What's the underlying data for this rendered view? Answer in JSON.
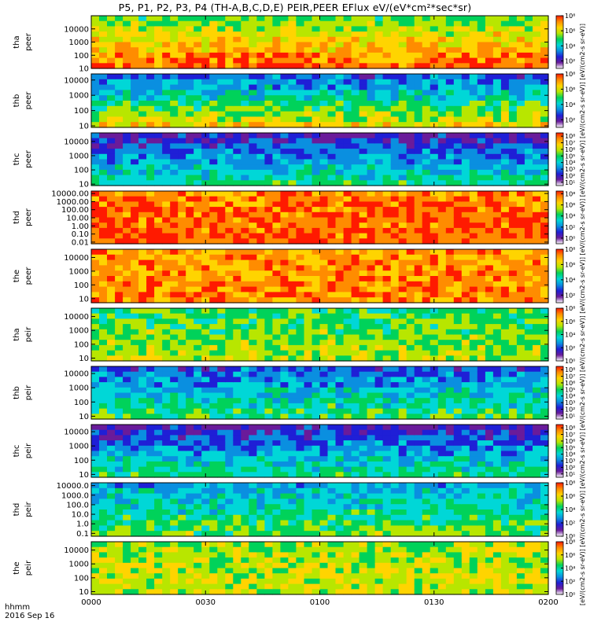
{
  "title": "P5, P1, P2, P3, P4 (TH-A,B,C,D,E) PEIR,PEER EFlux eV/(eV*cm²*sec*sr)",
  "colorbar": {
    "label": "[eV/(cm2-s sr-eV)]",
    "label_full": "[eV/(cm2-s sr-eV)] [eV/(cm2-s sr-eV)] [eV/(cm2-s sr-eV)] [eV/(cm2-s sr-eV)] [eV/(cm2-s sr-eV)] [eV/(cm2-s sr-eV)] [eV/(cm2-s sr-eV)] [eV/(cm2-s sr-eV)] [eV/(cm2-s sr-eV)] [eV/(cm2-s sr-eV)]",
    "colors": [
      "#ffffff",
      "#6a1b9a",
      "#1f1fd6",
      "#0a8fe0",
      "#00d7d7",
      "#00d25a",
      "#b8e600",
      "#ffd400",
      "#ff8c00",
      "#ff1a00"
    ]
  },
  "footer": {
    "time_label": "hhmm",
    "date_label": "2016 Sep 16"
  },
  "chart_data": [
    {
      "type": "heatmap",
      "probe": "tha",
      "species": "peer",
      "ylabel_line1": "tha",
      "ylabel_line2": "peer",
      "yticks": [
        "10000",
        "1000",
        "100",
        "10"
      ],
      "ytick_exp": [
        4,
        3,
        2,
        1
      ],
      "ylim": [
        1,
        5
      ],
      "ylog": true,
      "cbar_ticks": [
        "10⁸",
        "10⁶",
        "10⁴",
        "10²"
      ],
      "cbar_exp": [
        8,
        6,
        4,
        2
      ],
      "cbar_range": [
        1,
        8
      ],
      "ymin_data": 5,
      "dense": 0.9,
      "top_frac": 0.55
    },
    {
      "type": "heatmap",
      "probe": "thb",
      "species": "peer",
      "ylabel_line1": "thb",
      "ylabel_line2": "peer",
      "yticks": [
        "10000",
        "1000",
        "100",
        "10"
      ],
      "ytick_exp": [
        4,
        3,
        2,
        1
      ],
      "ylim": [
        0.9,
        4.4
      ],
      "ylog": true,
      "cbar_ticks": [
        "10⁸",
        "10⁶",
        "10⁴",
        "10²"
      ],
      "cbar_exp": [
        8,
        6,
        4,
        2
      ],
      "cbar_range": [
        1,
        8
      ],
      "ymin_data": 12,
      "dense": 0.7,
      "top_frac": 0.2
    },
    {
      "type": "heatmap",
      "probe": "thc",
      "species": "peer",
      "ylabel_line1": "thc",
      "ylabel_line2": "peer",
      "yticks": [
        "10000",
        "1000",
        "100",
        "10"
      ],
      "ytick_exp": [
        4,
        3,
        2,
        1
      ],
      "ylim": [
        0.9,
        4.6
      ],
      "ylog": true,
      "cbar_ticks": [
        "10⁸",
        "10⁷",
        "10⁶",
        "10⁵",
        "10⁴",
        "10³",
        "10²",
        "10¹"
      ],
      "cbar_exp": [
        8,
        7,
        6,
        5,
        4,
        3,
        2,
        1
      ],
      "cbar_range": [
        0.5,
        8.5
      ],
      "ymin_data": 8,
      "dense": 0.45,
      "top_frac": 0.1
    },
    {
      "type": "heatmap",
      "probe": "thd",
      "species": "peer",
      "ylabel_line1": "thd",
      "ylabel_line2": "peer",
      "yticks": [
        "10000.00",
        "1000.00",
        "100.00",
        "10.00",
        "1.00",
        "0.10",
        "0.01"
      ],
      "ytick_exp": [
        4,
        3,
        2,
        1,
        0,
        -1,
        -2
      ],
      "ylim": [
        -2.2,
        4.3
      ],
      "ylog": true,
      "cbar_ticks": [
        "10⁸",
        "10⁶",
        "10⁴",
        "10²",
        "10⁰"
      ],
      "cbar_exp": [
        8,
        6,
        4,
        2,
        0
      ],
      "cbar_range": [
        -1,
        8.5
      ],
      "ymin_data": 3,
      "dense": 0.92,
      "top_frac": 0.85
    },
    {
      "type": "heatmap",
      "probe": "the",
      "species": "peer",
      "ylabel_line1": "the",
      "ylabel_line2": "peer",
      "yticks": [
        "10000",
        "1000",
        "100",
        "10"
      ],
      "ytick_exp": [
        4,
        3,
        2,
        1
      ],
      "ylim": [
        0.7,
        4.6
      ],
      "ylog": true,
      "cbar_ticks": [
        "10⁸",
        "10⁶",
        "10⁴",
        "10²"
      ],
      "cbar_exp": [
        8,
        6,
        4,
        2
      ],
      "cbar_range": [
        1,
        8
      ],
      "ymin_data": 6,
      "dense": 0.85,
      "top_frac": 0.8
    },
    {
      "type": "heatmap",
      "probe": "tha",
      "species": "peir",
      "ylabel_line1": "tha",
      "ylabel_line2": "peir",
      "yticks": [
        "10000",
        "1000",
        "100",
        "10"
      ],
      "ytick_exp": [
        4,
        3,
        2,
        1
      ],
      "ylim": [
        0.8,
        4.6
      ],
      "ylog": true,
      "cbar_ticks": [
        "10⁸",
        "10⁶",
        "10⁴",
        "10²",
        "10⁰"
      ],
      "cbar_exp": [
        8,
        6,
        4,
        2,
        0
      ],
      "cbar_range": [
        0,
        8
      ],
      "ymin_data": 5,
      "dense": 0.6,
      "top_frac": 0.5
    },
    {
      "type": "heatmap",
      "probe": "thb",
      "species": "peir",
      "ylabel_line1": "thb",
      "ylabel_line2": "peir",
      "yticks": [
        "10000",
        "1000",
        "100",
        "10"
      ],
      "ytick_exp": [
        4,
        3,
        2,
        1
      ],
      "ylim": [
        0.8,
        4.5
      ],
      "ylog": true,
      "cbar_ticks": [
        "10⁸",
        "10⁷",
        "10⁶",
        "10⁵",
        "10⁴",
        "10³",
        "10²",
        "10¹"
      ],
      "cbar_exp": [
        8,
        7,
        6,
        5,
        4,
        3,
        2,
        1
      ],
      "cbar_range": [
        0.5,
        8.5
      ],
      "ymin_data": 5,
      "dense": 0.5,
      "top_frac": 0.2
    },
    {
      "type": "heatmap",
      "probe": "thc",
      "species": "peir",
      "ylabel_line1": "thc",
      "ylabel_line2": "peir",
      "yticks": [
        "10000",
        "1000",
        "100",
        "10"
      ],
      "ytick_exp": [
        4,
        3,
        2,
        1
      ],
      "ylim": [
        0.8,
        4.5
      ],
      "ylog": true,
      "cbar_ticks": [
        "10⁸",
        "10⁷",
        "10⁶",
        "10⁵",
        "10⁴",
        "10³",
        "10²",
        "10¹"
      ],
      "cbar_exp": [
        8,
        7,
        6,
        5,
        4,
        3,
        2,
        1
      ],
      "cbar_range": [
        0.5,
        8.5
      ],
      "ymin_data": 5,
      "dense": 0.45,
      "top_frac": 0.1
    },
    {
      "type": "heatmap",
      "probe": "thd",
      "species": "peir",
      "ylabel_line1": "thd",
      "ylabel_line2": "peir",
      "yticks": [
        "10000.0",
        "1000.0",
        "100.0",
        "10.0",
        "1.0",
        "0.1"
      ],
      "ytick_exp": [
        4,
        3,
        2,
        1,
        0,
        -1
      ],
      "ylim": [
        -1.3,
        4.3
      ],
      "ylog": true,
      "cbar_ticks": [
        "10⁸",
        "10⁶",
        "10⁴",
        "10²",
        "10⁰"
      ],
      "cbar_exp": [
        8,
        6,
        4,
        2,
        0
      ],
      "cbar_range": [
        0,
        8
      ],
      "ymin_data": 3,
      "dense": 0.55,
      "top_frac": 0.3
    },
    {
      "type": "heatmap",
      "probe": "the",
      "species": "peir",
      "ylabel_line1": "the",
      "ylabel_line2": "peir",
      "yticks": [
        "10000",
        "1000",
        "100",
        "10"
      ],
      "ytick_exp": [
        4,
        3,
        2,
        1
      ],
      "ylim": [
        0.8,
        4.6
      ],
      "ylog": true,
      "cbar_ticks": [
        "10⁸",
        "10⁶",
        "10⁴",
        "10²",
        "10⁰"
      ],
      "cbar_exp": [
        8,
        6,
        4,
        2,
        0
      ],
      "cbar_range": [
        0,
        8
      ],
      "ymin_data": 5,
      "dense": 0.65,
      "top_frac": 0.6
    }
  ],
  "xaxis": {
    "ticks": [
      "0000",
      "0030",
      "0100",
      "0130",
      "0200"
    ],
    "tick_minutes": [
      0,
      30,
      60,
      90,
      120
    ],
    "xlim_minutes": [
      0,
      120
    ]
  }
}
